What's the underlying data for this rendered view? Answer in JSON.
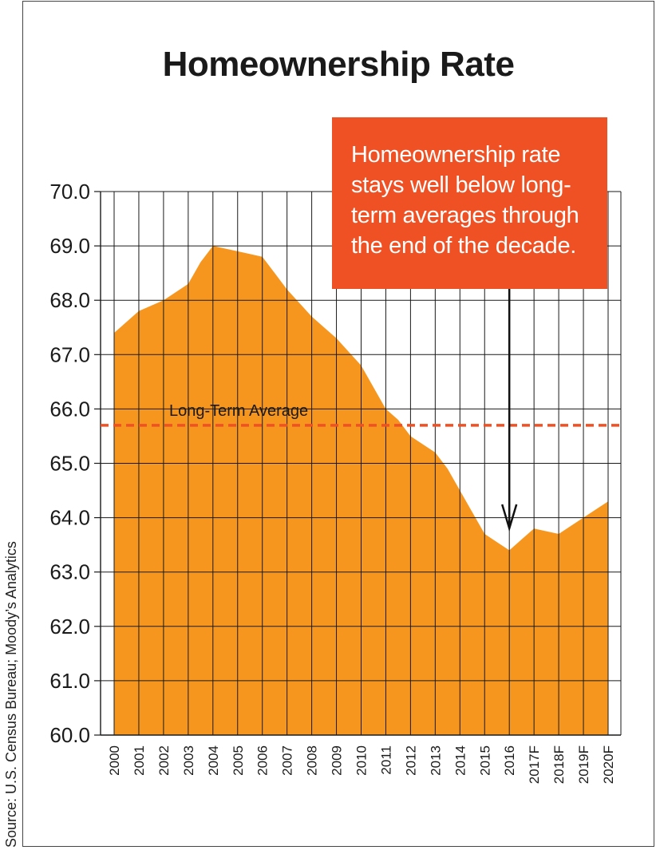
{
  "chart_data": {
    "type": "area",
    "title": "Homeownership Rate",
    "source": "Source: U.S. Census Bureau; Moody’s Analytics",
    "xlabel": "",
    "ylabel": "",
    "ylim": [
      60.0,
      70.0
    ],
    "yticks": [
      "60.0",
      "61.0",
      "62.0",
      "63.0",
      "64.0",
      "65.0",
      "66.0",
      "67.0",
      "68.0",
      "69.0",
      "70.0"
    ],
    "categories": [
      "2000",
      "2001",
      "2002",
      "2003",
      "2004",
      "2005",
      "2006",
      "2007",
      "2008",
      "2009",
      "2010",
      "2011",
      "2012",
      "2013",
      "2014",
      "2015",
      "2016",
      "2017F",
      "2018F",
      "2019F",
      "2020F"
    ],
    "x": [
      2000,
      2000.5,
      2001,
      2001.5,
      2002,
      2002.5,
      2003,
      2003.5,
      2004,
      2004.5,
      2005,
      2005.5,
      2006,
      2006.5,
      2007,
      2007.5,
      2008,
      2008.5,
      2009,
      2009.5,
      2010,
      2010.5,
      2011,
      2011.5,
      2012,
      2012.5,
      2013,
      2013.5,
      2014,
      2014.5,
      2015,
      2015.5,
      2016,
      2016.5,
      2017,
      2017.5,
      2018,
      2018.5,
      2019,
      2019.5,
      2020
    ],
    "series": [
      {
        "values": [
          67.4,
          67.6,
          67.8,
          67.9,
          68.0,
          68.15,
          68.3,
          68.7,
          69.0,
          68.95,
          68.9,
          68.85,
          68.8,
          68.5,
          68.2,
          67.95,
          67.7,
          67.5,
          67.3,
          67.05,
          66.8,
          66.4,
          66.0,
          65.8,
          65.5,
          65.35,
          65.2,
          64.9,
          64.5,
          64.1,
          63.7,
          63.55,
          63.4,
          63.6,
          63.8,
          63.75,
          63.7,
          63.85,
          64.0,
          64.15,
          64.3
        ]
      }
    ],
    "reference_line": {
      "label": "Long-Term Average",
      "value": 65.7
    },
    "annotation": {
      "lines": [
        "Homeownership rate",
        "stays well below long-",
        "term averages through",
        "the end of the decade."
      ],
      "points_to": "2016"
    },
    "grid": true,
    "colors": {
      "area": "#f7961e",
      "reference": "#ef5124",
      "callout": "#ef5124",
      "grid": "#1a1a1a"
    }
  }
}
